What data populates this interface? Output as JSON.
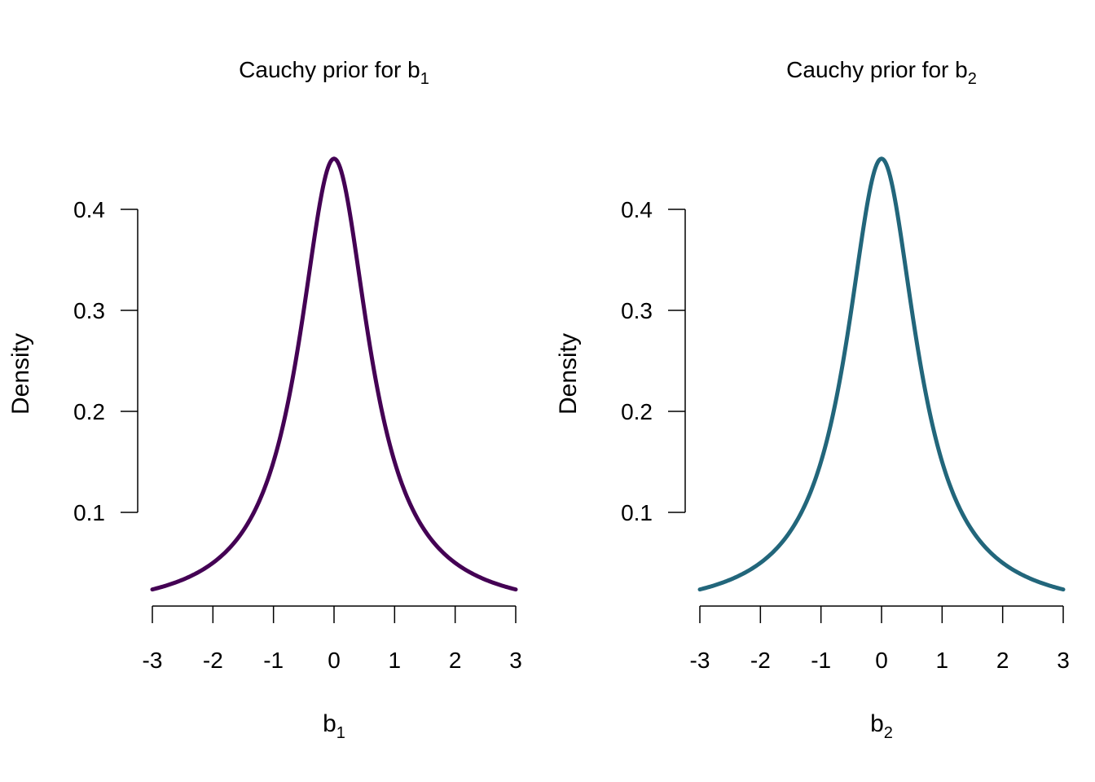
{
  "chart_data": [
    {
      "type": "line",
      "title": "Cauchy prior for  b",
      "title_subscript": "1",
      "xlabel": "b",
      "xlabel_subscript": "1",
      "ylabel": "Density",
      "distribution": {
        "name": "Cauchy",
        "location": 0,
        "scale": 0.7071
      },
      "xlim": [
        -3,
        3
      ],
      "ylim_axis": [
        0.1,
        0.4
      ],
      "xticks": [
        "-3",
        "-2",
        "-1",
        "0",
        "1",
        "2",
        "3"
      ],
      "yticks": [
        "0.1",
        "0.2",
        "0.3",
        "0.4"
      ],
      "peak": {
        "x": 0,
        "y": 0.45
      },
      "color": "#440154",
      "grid": false
    },
    {
      "type": "line",
      "title": "Cauchy prior for  b",
      "title_subscript": "2",
      "xlabel": "b",
      "xlabel_subscript": "2",
      "ylabel": "Density",
      "distribution": {
        "name": "Cauchy",
        "location": 0,
        "scale": 0.7071
      },
      "xlim": [
        -3,
        3
      ],
      "ylim_axis": [
        0.1,
        0.4
      ],
      "xticks": [
        "-3",
        "-2",
        "-1",
        "0",
        "1",
        "2",
        "3"
      ],
      "yticks": [
        "0.1",
        "0.2",
        "0.3",
        "0.4"
      ],
      "peak": {
        "x": 0,
        "y": 0.45
      },
      "color": "#22667b",
      "grid": false
    }
  ]
}
